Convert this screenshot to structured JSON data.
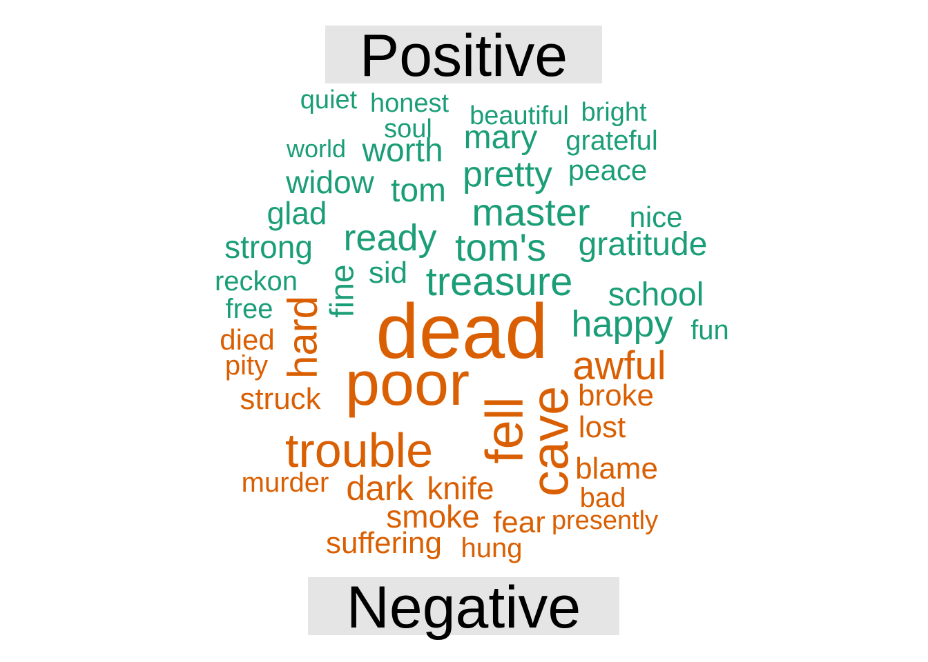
{
  "chart_data": {
    "type": "comparison_wordcloud",
    "groups": [
      {
        "name": "Positive",
        "color": "#1b9e77",
        "words": [
          "quiet",
          "honest",
          "beautiful",
          "bright",
          "soul",
          "world",
          "worth",
          "mary",
          "grateful",
          "widow",
          "tom",
          "pretty",
          "peace",
          "glad",
          "master",
          "nice",
          "strong",
          "ready",
          "tom's",
          "gratitude",
          "reckon",
          "fine",
          "sid",
          "treasure",
          "school",
          "free",
          "happy",
          "fun"
        ]
      },
      {
        "name": "Negative",
        "color": "#d95f02",
        "words": [
          "dead",
          "died",
          "hard",
          "pity",
          "poor",
          "awful",
          "struck",
          "broke",
          "fell",
          "cave",
          "lost",
          "trouble",
          "blame",
          "murder",
          "dark",
          "knife",
          "bad",
          "smoke",
          "fear",
          "presently",
          "suffering",
          "hung"
        ]
      }
    ]
  }
}
